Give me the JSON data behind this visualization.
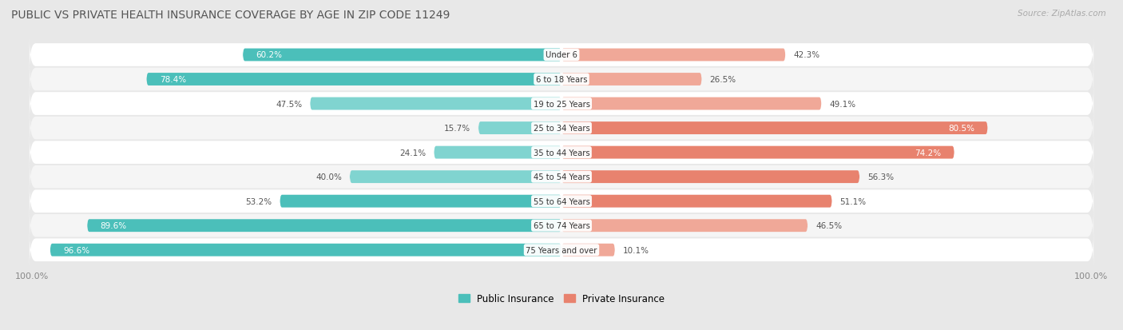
{
  "title": "PUBLIC VS PRIVATE HEALTH INSURANCE COVERAGE BY AGE IN ZIP CODE 11249",
  "source": "Source: ZipAtlas.com",
  "categories": [
    "Under 6",
    "6 to 18 Years",
    "19 to 25 Years",
    "25 to 34 Years",
    "35 to 44 Years",
    "45 to 54 Years",
    "55 to 64 Years",
    "65 to 74 Years",
    "75 Years and over"
  ],
  "public_values": [
    60.2,
    78.4,
    47.5,
    15.7,
    24.1,
    40.0,
    53.2,
    89.6,
    96.6
  ],
  "private_values": [
    42.3,
    26.5,
    49.1,
    80.5,
    74.2,
    56.3,
    51.1,
    46.5,
    10.1
  ],
  "public_color": "#4bbfba",
  "private_color": "#e8826e",
  "private_color_light": "#f0a898",
  "public_color_light": "#80d4d0",
  "background_color": "#e8e8e8",
  "row_color_odd": "#f5f5f5",
  "row_color_even": "#ffffff",
  "label_color": "#333333",
  "title_color": "#555555",
  "source_color": "#aaaaaa",
  "legend_public": "Public Insurance",
  "legend_private": "Private Insurance",
  "max_val": 100.0,
  "inside_label_threshold_pub": 55,
  "inside_label_threshold_priv": 60
}
